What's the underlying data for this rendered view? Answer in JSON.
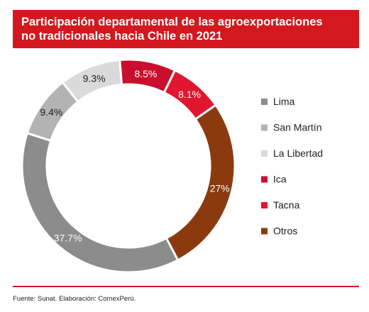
{
  "header": {
    "title_line1": "Participación departamental de las agroexportaciones",
    "title_line2": "no tradicionales hacia Chile en 2021"
  },
  "chart_data": {
    "type": "pie",
    "style": "donut",
    "categories": [
      "Lima",
      "San Martín",
      "La Libertad",
      "Ica",
      "Tacna",
      "Otros"
    ],
    "values": [
      37.7,
      9.4,
      9.3,
      8.5,
      8.1,
      27.0
    ],
    "data_labels": [
      "37.7%",
      "9.4%",
      "9.3%",
      "8.5%",
      "8.1%",
      "27%"
    ],
    "colors": [
      "#8c8c8c",
      "#b3b3b3",
      "#dadada",
      "#c8102e",
      "#e2162f",
      "#8b3a0f"
    ],
    "legend_position": "right"
  },
  "footer": {
    "source": "Fuente: Sunat. Elaboración: ComexPerú."
  }
}
